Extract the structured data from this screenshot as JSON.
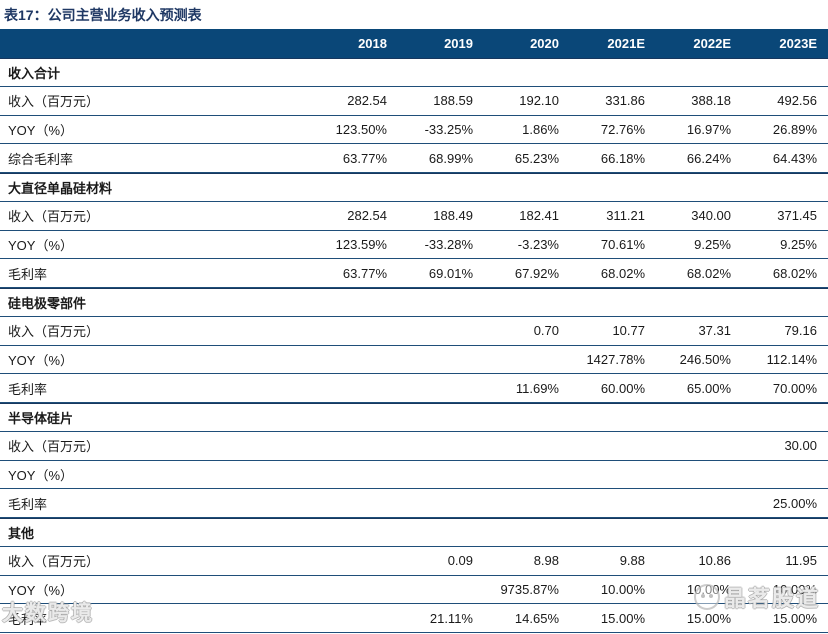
{
  "title": "表17：公司主营业务收入预测表",
  "columns": [
    "2018",
    "2019",
    "2020",
    "2021E",
    "2022E",
    "2023E"
  ],
  "sections": [
    {
      "name": "收入合计",
      "rows": [
        {
          "label": "收入（百万元）",
          "values": [
            "282.54",
            "188.59",
            "192.10",
            "331.86",
            "388.18",
            "492.56"
          ]
        },
        {
          "label": "YOY（%）",
          "values": [
            "123.50%",
            "-33.25%",
            "1.86%",
            "72.76%",
            "16.97%",
            "26.89%"
          ]
        },
        {
          "label": "综合毛利率",
          "values": [
            "63.77%",
            "68.99%",
            "65.23%",
            "66.18%",
            "66.24%",
            "64.43%"
          ]
        }
      ]
    },
    {
      "name": "大直径单晶硅材料",
      "rows": [
        {
          "label": "收入（百万元）",
          "values": [
            "282.54",
            "188.49",
            "182.41",
            "311.21",
            "340.00",
            "371.45"
          ]
        },
        {
          "label": "YOY（%）",
          "values": [
            "123.59%",
            "-33.28%",
            "-3.23%",
            "70.61%",
            "9.25%",
            "9.25%"
          ]
        },
        {
          "label": "毛利率",
          "values": [
            "63.77%",
            "69.01%",
            "67.92%",
            "68.02%",
            "68.02%",
            "68.02%"
          ]
        }
      ]
    },
    {
      "name": "硅电极零部件",
      "rows": [
        {
          "label": "收入（百万元）",
          "values": [
            "",
            "",
            "0.70",
            "10.77",
            "37.31",
            "79.16"
          ]
        },
        {
          "label": "YOY（%）",
          "values": [
            "",
            "",
            "",
            "1427.78%",
            "246.50%",
            "112.14%"
          ]
        },
        {
          "label": "毛利率",
          "values": [
            "",
            "",
            "11.69%",
            "60.00%",
            "65.00%",
            "70.00%"
          ]
        }
      ]
    },
    {
      "name": "半导体硅片",
      "rows": [
        {
          "label": "收入（百万元）",
          "values": [
            "",
            "",
            "",
            "",
            "",
            "30.00"
          ]
        },
        {
          "label": "YOY（%）",
          "values": [
            "",
            "",
            "",
            "",
            "",
            ""
          ]
        },
        {
          "label": "毛利率",
          "values": [
            "",
            "",
            "",
            "",
            "",
            "25.00%"
          ]
        }
      ]
    },
    {
      "name": "其他",
      "rows": [
        {
          "label": "收入（百万元）",
          "values": [
            "",
            "0.09",
            "8.98",
            "9.88",
            "10.86",
            "11.95"
          ]
        },
        {
          "label": "YOY（%）",
          "values": [
            "",
            "",
            "9735.87%",
            "10.00%",
            "10.00%",
            "10.00%"
          ]
        },
        {
          "label": "毛利率",
          "values": [
            "",
            "21.11%",
            "14.65%",
            "15.00%",
            "15.00%",
            "15.00%"
          ]
        }
      ]
    }
  ],
  "watermarks": {
    "left": "大数跨境",
    "right": "晶茗股道"
  },
  "colors": {
    "header_bg": "#0A4778",
    "title_text": "#1F3864",
    "row_line": "#1F4E79"
  }
}
